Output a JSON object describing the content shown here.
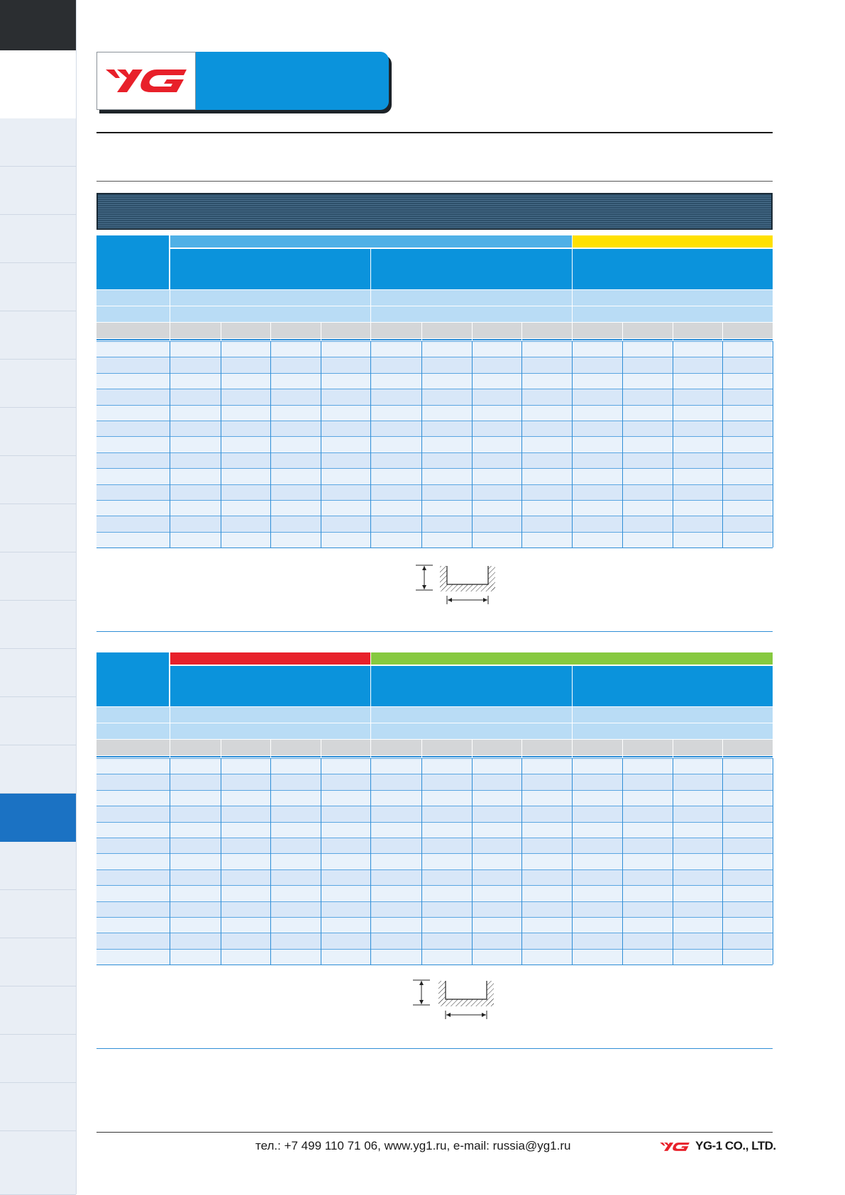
{
  "footer": {
    "contact": "тел.: +7 499 110 71 06, www.yg1.ru, e-mail: russia@yg1.ru",
    "company": "YG-1 CO., LTD."
  },
  "colors": {
    "header_blue": "#0b93dc",
    "light_blue": "#4fb0e6",
    "yellow": "#ffe000",
    "red": "#e8202a",
    "green": "#86c93f",
    "sidebar_active": "#1b72c3"
  },
  "icons": {
    "logo": "yg-logo-icon",
    "slot": "slot-profile-icon"
  }
}
